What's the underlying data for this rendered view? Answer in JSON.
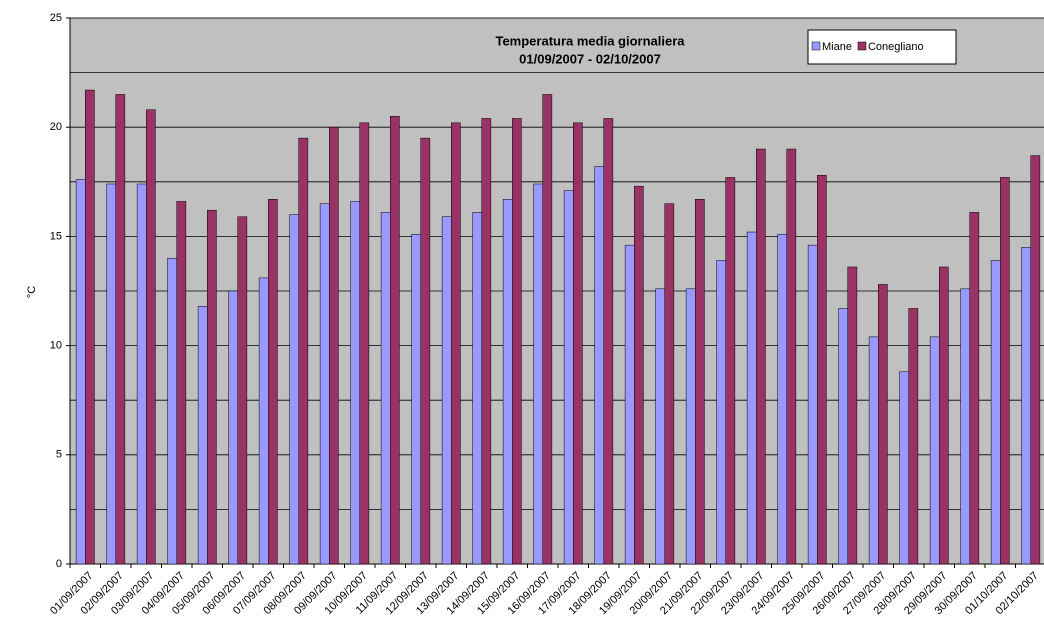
{
  "chart_data": {
    "type": "bar",
    "title": "Temperatura media giornaliera",
    "subtitle": "01/09/2007 - 02/10/2007",
    "y_label": "°C",
    "categories": [
      "01/09/2007",
      "02/09/2007",
      "03/09/2007",
      "04/09/2007",
      "05/09/2007",
      "06/09/2007",
      "07/09/2007",
      "08/09/2007",
      "09/09/2007",
      "10/09/2007",
      "11/09/2007",
      "12/09/2007",
      "13/09/2007",
      "14/09/2007",
      "15/09/2007",
      "16/09/2007",
      "17/09/2007",
      "18/09/2007",
      "19/09/2007",
      "20/09/2007",
      "21/09/2007",
      "22/09/2007",
      "23/09/2007",
      "24/09/2007",
      "25/09/2007",
      "26/09/2007",
      "27/09/2007",
      "28/09/2007",
      "29/09/2007",
      "30/09/2007",
      "01/10/2007",
      "02/10/2007"
    ],
    "series": [
      {
        "name": "Miane",
        "color": "#9999ff",
        "values": [
          17.6,
          17.4,
          17.4,
          14.0,
          11.8,
          12.5,
          13.1,
          16.0,
          16.5,
          16.6,
          16.1,
          15.1,
          15.9,
          16.1,
          16.7,
          17.4,
          17.1,
          18.2,
          14.6,
          12.6,
          12.6,
          13.9,
          15.2,
          15.1,
          14.6,
          11.7,
          10.4,
          8.8,
          10.4,
          12.6,
          13.9,
          14.5
        ]
      },
      {
        "name": "Conegliano",
        "color": "#993366",
        "values": [
          21.7,
          21.5,
          20.8,
          16.6,
          16.2,
          15.9,
          16.7,
          19.5,
          20.0,
          20.2,
          20.5,
          19.5,
          20.2,
          20.4,
          20.4,
          21.5,
          20.2,
          20.4,
          17.3,
          16.5,
          16.7,
          17.7,
          19.0,
          19.0,
          17.8,
          13.6,
          12.8,
          11.7,
          13.6,
          16.1,
          17.7,
          18.7
        ]
      }
    ],
    "ylim": [
      0,
      25
    ],
    "yticks": [
      0,
      5,
      10,
      15,
      20,
      25
    ],
    "grid_lines": [
      2.5,
      5,
      7.5,
      10,
      12.5,
      15,
      17.5,
      20,
      22.5,
      25
    ],
    "plot_background": "#c0c0c0",
    "legend": "top-right"
  }
}
